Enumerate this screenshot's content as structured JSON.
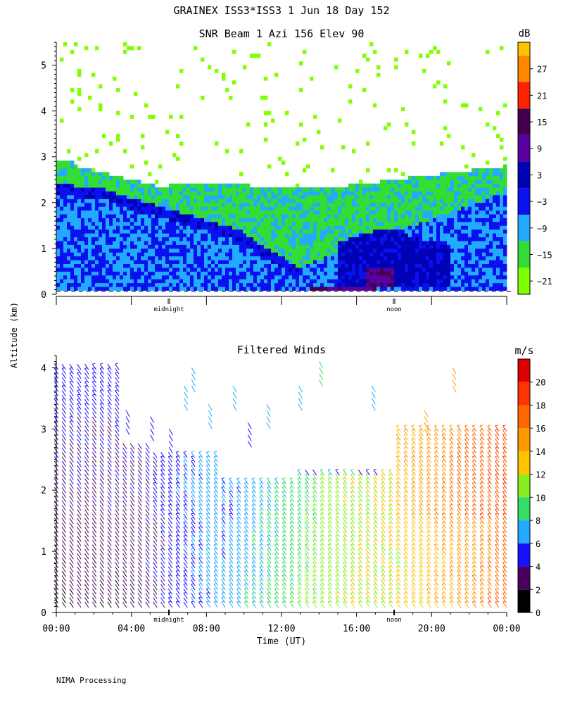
{
  "header": {
    "title": "GRAINEX ISS3*ISS3   1 Jun 18 Day 152"
  },
  "footer": {
    "credit": "NIMA Processing"
  },
  "chart_data": [
    {
      "type": "heatmap",
      "title": "SNR Beam 1 Azi 156 Elev 90",
      "xlabel": "",
      "ylabel": "Altitude (km)",
      "ylim": [
        0,
        5.5
      ],
      "yticks": [
        "0",
        "1",
        "2",
        "3",
        "4",
        "5"
      ],
      "day_markers": [
        "midnight",
        "noon"
      ],
      "colorbar": {
        "unit": "dB",
        "min": -24,
        "max": 33,
        "labels": [
          "27",
          "21",
          "15",
          "9",
          "3",
          "−3",
          "−9",
          "−15",
          "−21"
        ],
        "label_values": [
          27,
          21,
          15,
          9,
          3,
          -3,
          -9,
          -15,
          -21
        ],
        "bands": [
          {
            "from": -24,
            "to": -18,
            "color": "#7fff00"
          },
          {
            "from": -18,
            "to": -12,
            "color": "#33dd33"
          },
          {
            "from": -12,
            "to": -6,
            "color": "#22aaff"
          },
          {
            "from": -6,
            "to": 0,
            "color": "#0a10ee"
          },
          {
            "from": 0,
            "to": 6,
            "color": "#0000b4"
          },
          {
            "from": 6,
            "to": 12,
            "color": "#5a00a0"
          },
          {
            "from": 12,
            "to": 18,
            "color": "#44004f"
          },
          {
            "from": 18,
            "to": 24,
            "color": "#ff2200"
          },
          {
            "from": 24,
            "to": 30,
            "color": "#ff8800"
          },
          {
            "from": 30,
            "to": 33,
            "color": "#ffc400"
          }
        ]
      }
    },
    {
      "type": "scatter",
      "title": "Filtered Winds",
      "xlabel": "Time (UT)",
      "ylabel": "Altitude (km)",
      "ylim": [
        0,
        4.2
      ],
      "yticks": [
        "0",
        "1",
        "2",
        "3",
        "4"
      ],
      "xticks": [
        "00:00",
        "04:00",
        "08:00",
        "12:00",
        "16:00",
        "20:00",
        "00:00"
      ],
      "xlim_hours": [
        0,
        24
      ],
      "day_markers": [
        "midnight",
        "noon"
      ],
      "colorbar": {
        "unit": "m/s",
        "min": 0,
        "max": 22,
        "labels": [
          "20",
          "18",
          "16",
          "14",
          "12",
          "10",
          "8",
          "6",
          "4",
          "2",
          "0"
        ],
        "label_values": [
          20,
          18,
          16,
          14,
          12,
          10,
          8,
          6,
          4,
          2,
          0
        ],
        "bands": [
          {
            "from": 0,
            "to": 2,
            "color": "#000000"
          },
          {
            "from": 2,
            "to": 4,
            "color": "#4a0060"
          },
          {
            "from": 4,
            "to": 6,
            "color": "#1a10ff"
          },
          {
            "from": 6,
            "to": 8,
            "color": "#22aaff"
          },
          {
            "from": 8,
            "to": 10,
            "color": "#33dd66"
          },
          {
            "from": 10,
            "to": 12,
            "color": "#88ee22"
          },
          {
            "from": 12,
            "to": 14,
            "color": "#ffc400"
          },
          {
            "from": 14,
            "to": 16,
            "color": "#ff9900"
          },
          {
            "from": 16,
            "to": 18,
            "color": "#ff6600"
          },
          {
            "from": 18,
            "to": 20,
            "color": "#ff3300"
          },
          {
            "from": 20,
            "to": 22,
            "color": "#dd0000"
          }
        ]
      }
    }
  ]
}
